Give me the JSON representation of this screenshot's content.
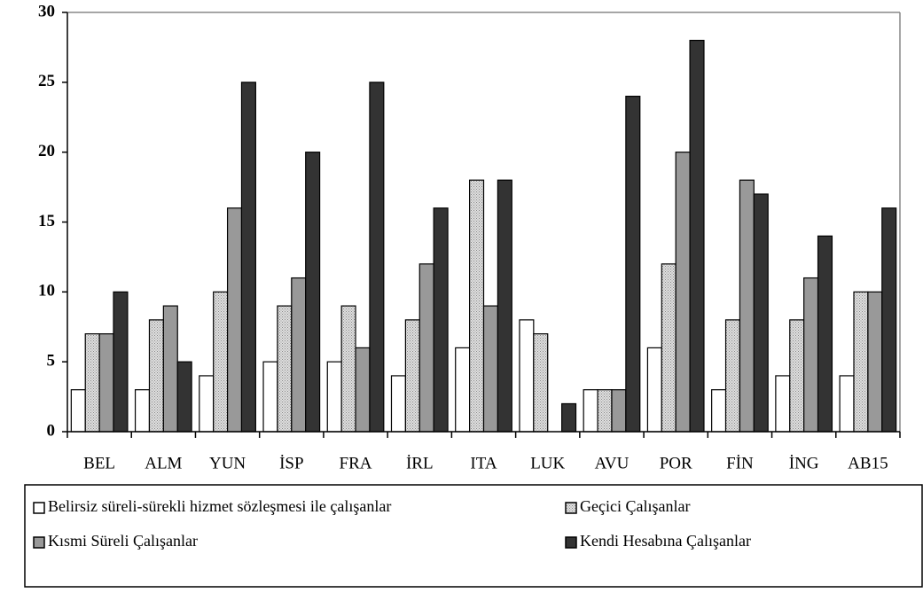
{
  "chart_data": {
    "type": "bar",
    "categories": [
      "BEL",
      "ALM",
      "YUN",
      "İSP",
      "FRA",
      "İRL",
      "ITA",
      "LUK",
      "AVU",
      "POR",
      "FİN",
      "İNG",
      "AB15"
    ],
    "series": [
      {
        "name": "Belirsiz süreli-sürekli hizmet sözleşmesi ile çalışanlar",
        "color": "#ffffff",
        "values": [
          3,
          3,
          4,
          5,
          5,
          4,
          6,
          8,
          3,
          6,
          3,
          4,
          4
        ]
      },
      {
        "name": "Geçici Çalışanlar",
        "color": "#c8c8c8",
        "values": [
          7,
          8,
          10,
          9,
          9,
          8,
          18,
          7,
          3,
          12,
          8,
          8,
          10
        ]
      },
      {
        "name": "Kısmi Süreli Çalışanlar",
        "color": "#999999",
        "values": [
          7,
          9,
          16,
          11,
          6,
          12,
          9,
          0,
          3,
          20,
          18,
          11,
          10
        ]
      },
      {
        "name": "Kendi Hesabına Çalışanlar",
        "color": "#333333",
        "values": [
          10,
          5,
          25,
          20,
          25,
          16,
          18,
          2,
          24,
          28,
          17,
          14,
          16
        ]
      }
    ],
    "ylim": [
      0,
      30
    ],
    "yticks": [
      0,
      5,
      10,
      15,
      20,
      25,
      30
    ],
    "grid": false
  }
}
